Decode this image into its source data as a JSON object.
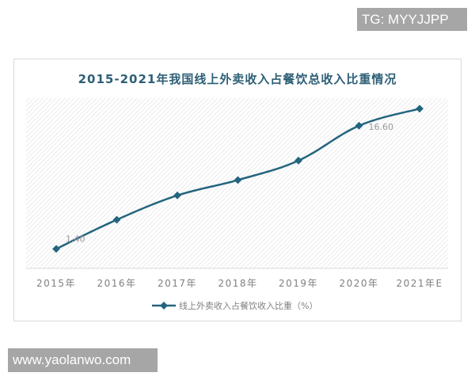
{
  "watermarks": {
    "top": "TG: MYYJJPP",
    "bottom": "www.yaolanwo.com"
  },
  "colors": {
    "line": "#23657f",
    "title": "#2e5f76",
    "axis_text": "#7f7f7f",
    "label_text": "#999999"
  },
  "chart_data": {
    "type": "line",
    "title": "2015-2021年我国线上外卖收入占餐饮总收入比重情况",
    "xlabel": "",
    "ylabel": "",
    "categories": [
      "2015年",
      "2016年",
      "2017年",
      "2018年",
      "2019年",
      "2020年",
      "2021年E"
    ],
    "series": [
      {
        "name": "线上外卖收入占餐饮收入比重（%）",
        "values": [
          1.4,
          5.0,
          8.0,
          9.9,
          12.3,
          16.6,
          18.7
        ],
        "labels": [
          "1.40",
          null,
          null,
          null,
          null,
          "16.60",
          null
        ]
      }
    ],
    "ylim": [
      -1.0,
      20.0
    ],
    "grid": false,
    "legend_position": "bottom",
    "smooth": true,
    "marker": "diamond"
  }
}
